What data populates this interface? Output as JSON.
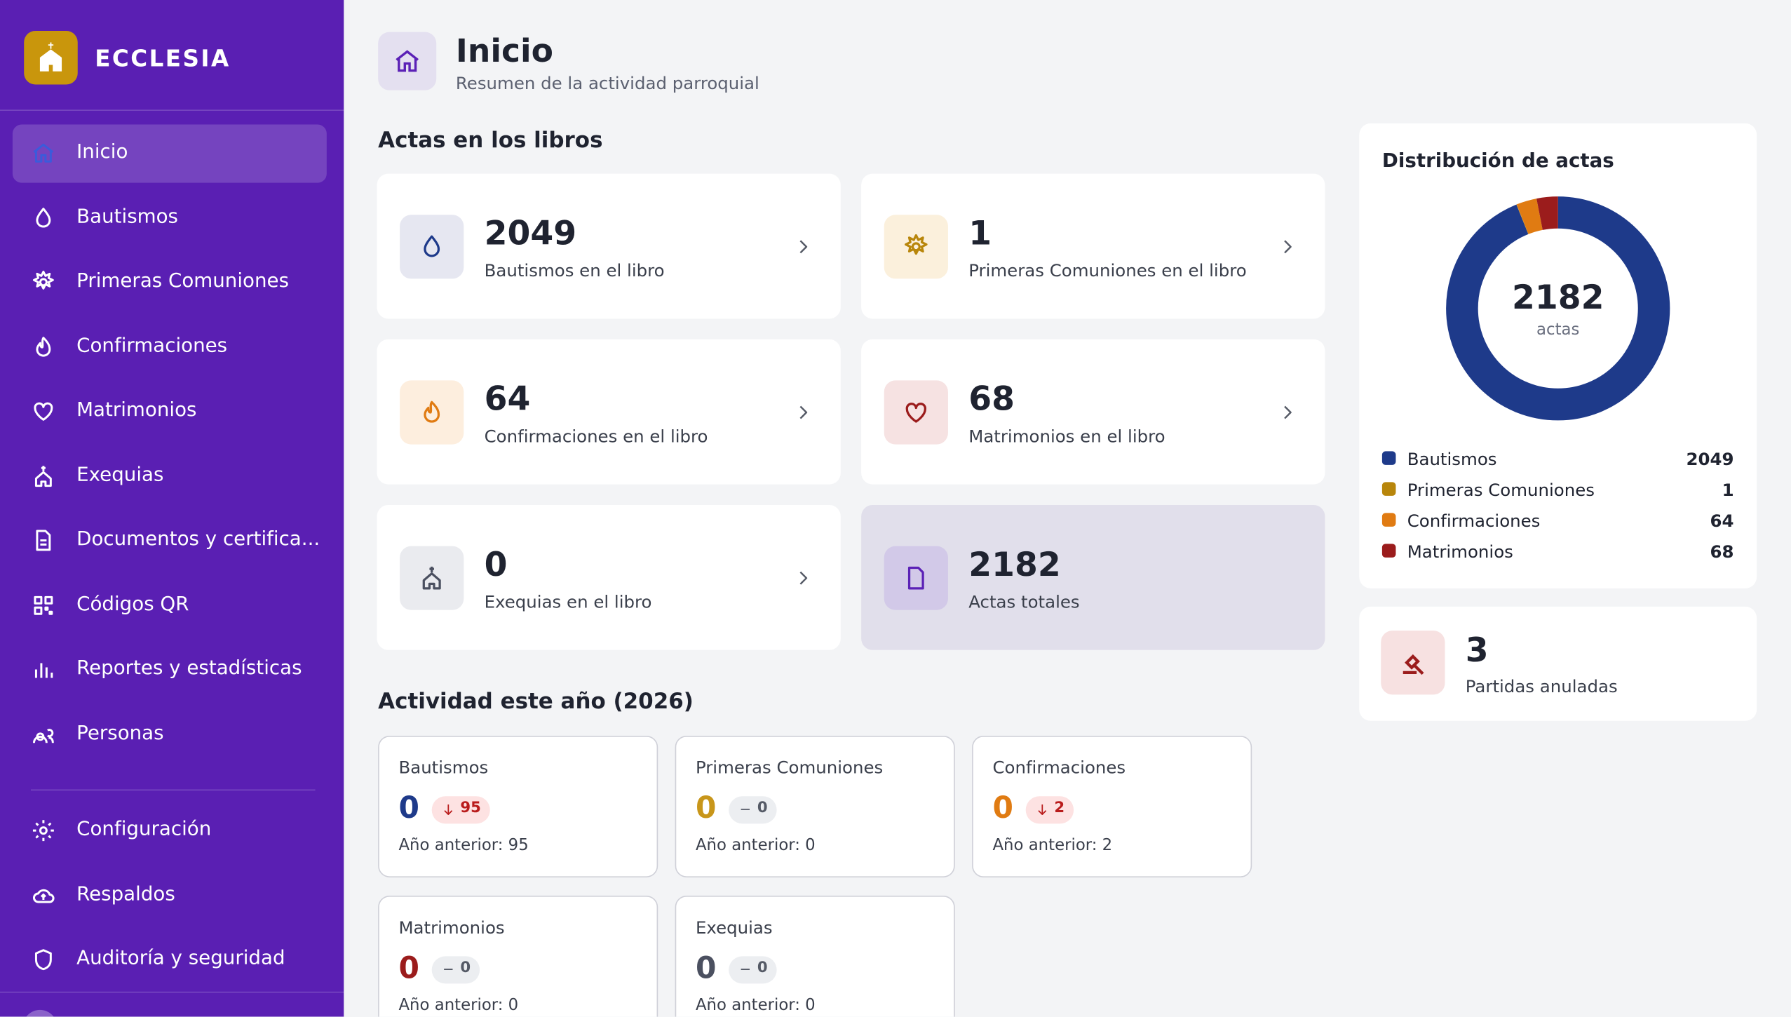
{
  "brand": "ECCLESIA",
  "nav": {
    "items": [
      "Inicio",
      "Bautismos",
      "Primeras Comuniones",
      "Confirmaciones",
      "Matrimonios",
      "Exequias",
      "Documentos y certifica...",
      "Códigos QR",
      "Reportes y estadísticas",
      "Personas"
    ],
    "settings": [
      "Configuración",
      "Respaldos",
      "Auditoría y seguridad"
    ]
  },
  "header": {
    "title": "Inicio",
    "subtitle": "Resumen de la actividad parroquial"
  },
  "books": {
    "title": "Actas en los libros",
    "cards": [
      {
        "value": 2049,
        "label": "Bautismos en el libro"
      },
      {
        "value": 1,
        "label": "Primeras Comuniones en el libro"
      },
      {
        "value": 64,
        "label": "Confirmaciones en el libro"
      },
      {
        "value": 68,
        "label": "Matrimonios en el libro"
      },
      {
        "value": 0,
        "label": "Exequias en el libro"
      },
      {
        "value": 2182,
        "label": "Actas totales"
      }
    ]
  },
  "year": {
    "title": "Actividad este año (2026)",
    "cards": [
      {
        "name": "Bautismos",
        "count": 0,
        "change": 95,
        "trend": "down",
        "previous": "Año anterior: 95"
      },
      {
        "name": "Primeras Comuniones",
        "count": 0,
        "change": 0,
        "trend": "flat",
        "previous": "Año anterior: 0"
      },
      {
        "name": "Confirmaciones",
        "count": 0,
        "change": 2,
        "trend": "down",
        "previous": "Año anterior: 2"
      },
      {
        "name": "Matrimonios",
        "count": 0,
        "change": 0,
        "trend": "flat",
        "previous": "Año anterior: 0"
      },
      {
        "name": "Exequias",
        "count": 0,
        "change": 0,
        "trend": "flat",
        "previous": "Año anterior: 0"
      }
    ]
  },
  "distribution": {
    "type": "donut",
    "title": "Distribución de actas",
    "total": 2182,
    "total_label": "actas",
    "items": [
      {
        "name": "Bautismos",
        "value": 2049,
        "color": "#1e3a8a"
      },
      {
        "name": "Primeras Comuniones",
        "value": 1,
        "color": "#b8860b"
      },
      {
        "name": "Confirmaciones",
        "value": 64,
        "color": "#e07b12"
      },
      {
        "name": "Matrimonios",
        "value": 68,
        "color": "#9b1c1c"
      }
    ]
  },
  "annulled": {
    "value": 3,
    "label": "Partidas anuladas"
  }
}
